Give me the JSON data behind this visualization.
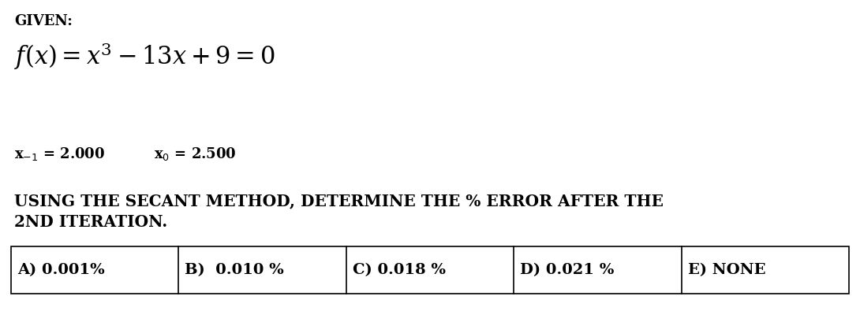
{
  "background_color": "#ffffff",
  "given_label": "GIVEN:",
  "formula_text": "$f(x) = x^3 - 13x + 9 = 0$",
  "question_line1": "USING THE SECANT METHOD, DETERMINE THE % ERROR AFTER THE",
  "question_line2": "2ND ITERATION.",
  "choices": [
    "A) 0.001%",
    "B)  0.010 %",
    "C) 0.018 %",
    "D) 0.021 %",
    "E) NONE"
  ],
  "given_fontsize": 13,
  "formula_fontsize": 22,
  "subscript_fontsize": 13,
  "question_fontsize": 14.5,
  "choice_fontsize": 14
}
